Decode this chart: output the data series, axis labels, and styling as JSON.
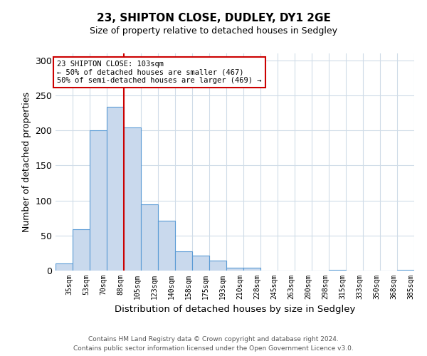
{
  "title": "23, SHIPTON CLOSE, DUDLEY, DY1 2GE",
  "subtitle": "Size of property relative to detached houses in Sedgley",
  "xlabel": "Distribution of detached houses by size in Sedgley",
  "ylabel": "Number of detached properties",
  "bar_labels": [
    "35sqm",
    "53sqm",
    "70sqm",
    "88sqm",
    "105sqm",
    "123sqm",
    "140sqm",
    "158sqm",
    "175sqm",
    "193sqm",
    "210sqm",
    "228sqm",
    "245sqm",
    "263sqm",
    "280sqm",
    "298sqm",
    "315sqm",
    "333sqm",
    "350sqm",
    "368sqm",
    "385sqm"
  ],
  "bar_values": [
    10,
    59,
    200,
    234,
    204,
    95,
    71,
    27,
    21,
    14,
    4,
    4,
    0,
    0,
    0,
    0,
    1,
    0,
    0,
    0,
    1
  ],
  "bar_color": "#c9d9ed",
  "bar_edge_color": "#5b9bd5",
  "ylim": [
    0,
    310
  ],
  "yticks": [
    0,
    50,
    100,
    150,
    200,
    250,
    300
  ],
  "vline_x": 4,
  "vline_color": "#cc0000",
  "annotation_text": "23 SHIPTON CLOSE: 103sqm\n← 50% of detached houses are smaller (467)\n50% of semi-detached houses are larger (469) →",
  "annotation_box_color": "#ffffff",
  "annotation_box_edge": "#cc0000",
  "footer_line1": "Contains HM Land Registry data © Crown copyright and database right 2024.",
  "footer_line2": "Contains public sector information licensed under the Open Government Licence v3.0.",
  "background_color": "#ffffff",
  "grid_color": "#d0dce8"
}
